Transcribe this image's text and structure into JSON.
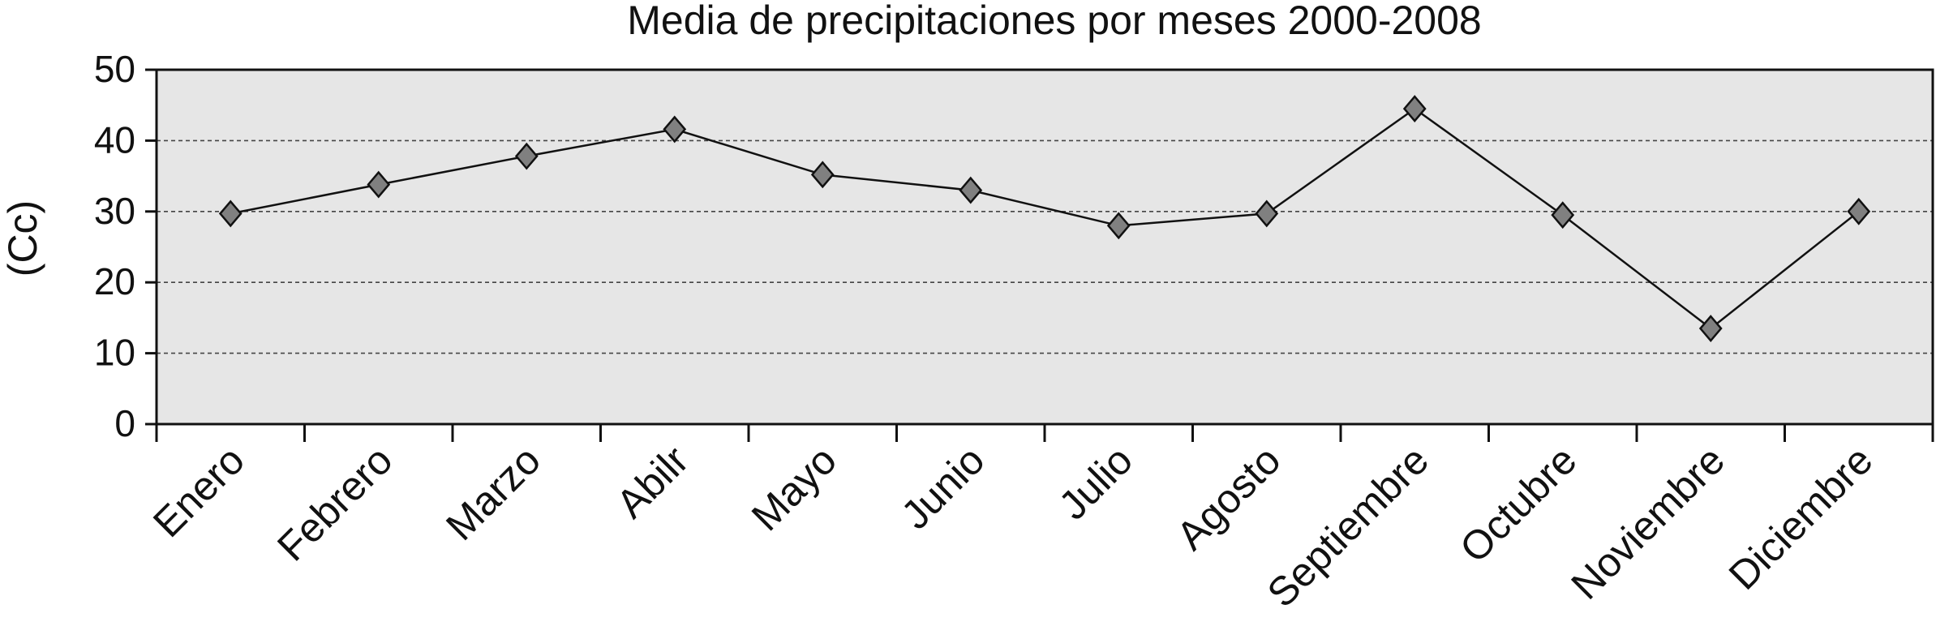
{
  "chart_data": {
    "type": "line",
    "title": "Media de precipitaciones por meses 2000-2008",
    "xlabel": "",
    "ylabel": "(Cc)",
    "categories": [
      "Enero",
      "Febrero",
      "Marzo",
      "Abilr",
      "Mayo",
      "Junio",
      "Julio",
      "Agosto",
      "Septiembre",
      "Octubre",
      "Noviembre",
      "Diciembre"
    ],
    "series": [
      {
        "values": [
          29.7,
          33.8,
          37.8,
          41.6,
          35.2,
          33.0,
          28.0,
          29.7,
          44.5,
          29.5,
          13.5,
          30.0
        ]
      }
    ],
    "ylim": [
      0,
      50
    ],
    "yticks": [
      "0",
      "10",
      "20",
      "30",
      "40",
      "50"
    ],
    "grid": "horizontal-dashed",
    "legend": "none",
    "colors": {
      "plot_background": "#e6e6e6",
      "line": "#111111",
      "marker_fill": "#808080",
      "marker_stroke": "#111111",
      "axis": "#111111",
      "grid": "#444444"
    }
  }
}
